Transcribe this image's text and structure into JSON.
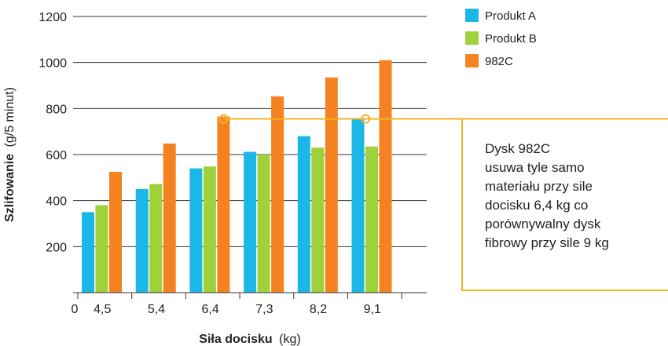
{
  "chart_data": {
    "type": "bar",
    "categories": [
      "4,5",
      "5,4",
      "6,4",
      "7,3",
      "8,2",
      "9,1"
    ],
    "x_origin_label": "0",
    "series": [
      {
        "name": "Produkt A",
        "color": "#1bb7e6",
        "values": [
          350,
          450,
          540,
          612,
          680,
          755
        ]
      },
      {
        "name": "Produkt B",
        "color": "#9fd13a",
        "values": [
          380,
          472,
          548,
          600,
          630,
          635
        ]
      },
      {
        "name": "982C",
        "color": "#f58220",
        "values": [
          525,
          648,
          765,
          853,
          935,
          1010
        ]
      }
    ],
    "yticks": [
      200,
      400,
      600,
      800,
      1000,
      1200
    ],
    "ylim": [
      0,
      1200
    ],
    "grid": true,
    "legend_position": "top-right",
    "xlabel": {
      "bold": "Siła docisku",
      "unit": "(kg)"
    },
    "ylabel": {
      "bold": "Szlifowanie",
      "unit": "(g/5 minut)"
    },
    "reference_line": {
      "value": 755,
      "color": "#f5b325",
      "marked_categories": [
        "6,4",
        "9,1"
      ]
    },
    "annotation": {
      "lines": [
        "Dysk 982C",
        "usuwa tyle samo",
        "materiału przy sile",
        "docisku 6,4 kg co",
        "porównywalny dysk",
        "fibrowy przy sile 9 kg"
      ],
      "border_color": "#f5b325"
    }
  }
}
